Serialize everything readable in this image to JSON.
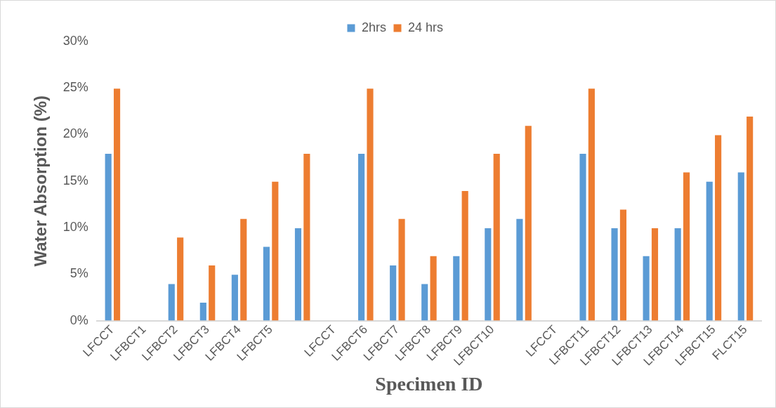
{
  "chart_data": {
    "type": "bar",
    "xlabel": "Specimen ID",
    "ylabel": "Water Absorption (%)",
    "categories": [
      "LFCCT",
      "LFBCT1",
      "LFBCT2",
      "LFBCT3",
      "LFBCT4",
      "LFBCT5",
      null,
      "LFCCT",
      "LFBCT6",
      "LFBCT7",
      "LFBCT8",
      "LFBCT9",
      "LFBCT10",
      null,
      "LFCCT",
      "LFBCT11",
      "LFBCT12",
      "LFBCT13",
      "LFBCT14",
      "LFBCT15",
      "FLCT15"
    ],
    "series": [
      {
        "name": "2hrs",
        "color": "#5b9bd5",
        "values": [
          18,
          null,
          4,
          2,
          5,
          8,
          10,
          null,
          18,
          6,
          4,
          7,
          10,
          11,
          null,
          18,
          10,
          7,
          10,
          15,
          16
        ]
      },
      {
        "name": "24 hrs",
        "color": "#ed7d31",
        "values": [
          25,
          null,
          9,
          6,
          11,
          15,
          18,
          null,
          25,
          11,
          7,
          14,
          18,
          21,
          null,
          25,
          12,
          10,
          16,
          20,
          22
        ]
      }
    ],
    "ylim": [
      0,
      30
    ],
    "yticks": [
      {
        "value": 0,
        "label": "0%"
      },
      {
        "value": 5,
        "label": "5%"
      },
      {
        "value": 10,
        "label": "10%"
      },
      {
        "value": 15,
        "label": "15%"
      },
      {
        "value": 20,
        "label": "20%"
      },
      {
        "value": 25,
        "label": "25%"
      },
      {
        "value": 30,
        "label": "30%"
      }
    ],
    "grid": false,
    "legend": "top"
  }
}
